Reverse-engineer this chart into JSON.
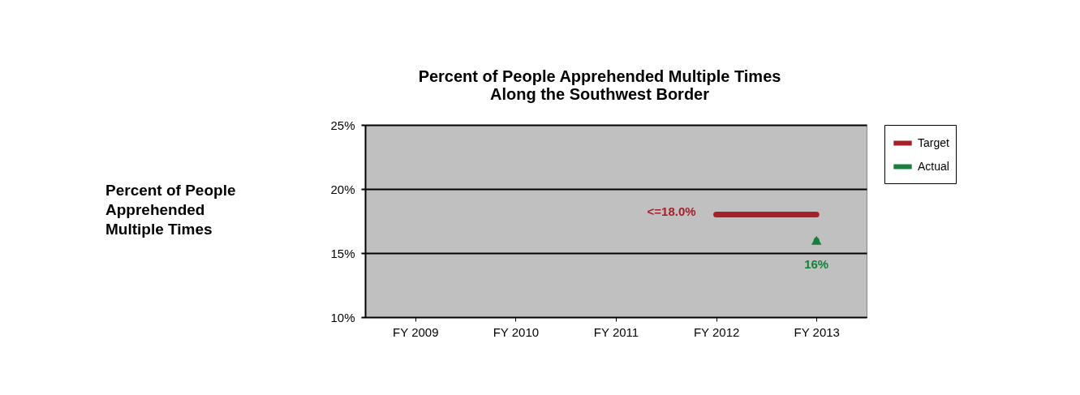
{
  "chart_data": {
    "type": "line",
    "title": [
      "Percent of People Apprehended Multiple Times",
      "Along the Southwest Border"
    ],
    "annotations": [
      "Percent of People\nApprehended\nMultiple Times"
    ],
    "categories": [
      "FY 2009",
      "FY 2010",
      "FY 2011",
      "FY 2012",
      "FY 2013"
    ],
    "series": [
      {
        "name": "Target",
        "color": "#a6202a",
        "marker": "none",
        "values": [
          null,
          null,
          null,
          18,
          18
        ],
        "value_labels": [
          null,
          null,
          null,
          "<=18.0%",
          null
        ]
      },
      {
        "name": "Actual",
        "color": "#17803c",
        "marker": "triangle",
        "values": [
          null,
          null,
          null,
          null,
          16
        ],
        "value_labels": [
          null,
          null,
          null,
          null,
          "16%"
        ]
      }
    ],
    "ylim": [
      10,
      25
    ],
    "yticks": [
      {
        "value": 10,
        "label": "10%"
      },
      {
        "value": 15,
        "label": "15%"
      },
      {
        "value": 20,
        "label": "20%"
      },
      {
        "value": 25,
        "label": "25%"
      }
    ],
    "grid": "y",
    "legend": "right"
  }
}
